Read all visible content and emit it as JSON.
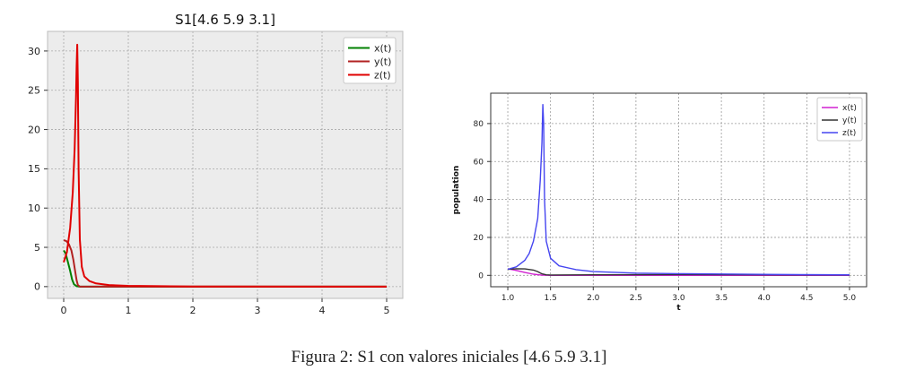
{
  "caption": "Figura 2: S1 con valores iniciales [4.6 5.9 3.1]",
  "chart_data": [
    {
      "type": "line",
      "title": "S1[4.6 5.9 3.1]",
      "xlabel": "",
      "ylabel": "",
      "xlim": [
        -0.25,
        5.25
      ],
      "ylim": [
        -1.5,
        32.5
      ],
      "xticks": [
        0,
        1,
        2,
        3,
        4,
        5
      ],
      "yticks": [
        0,
        5,
        10,
        15,
        20,
        25,
        30
      ],
      "grid": true,
      "legend": "top-right",
      "style": {
        "background": "#ececec",
        "grid_color": "#a8a8a8",
        "grid_dash": true
      },
      "series": [
        {
          "name": "x(t)",
          "color": "#008000",
          "x": [
            0,
            0.03,
            0.06,
            0.1,
            0.13,
            0.16,
            0.2,
            0.25,
            0.3,
            5
          ],
          "y": [
            4.6,
            4.2,
            3.3,
            2.0,
            0.9,
            0.3,
            0.05,
            0.0,
            0.0,
            0.0
          ]
        },
        {
          "name": "y(t)",
          "color": "#b22222",
          "x": [
            0,
            0.04,
            0.08,
            0.12,
            0.15,
            0.18,
            0.2,
            0.22,
            0.25,
            0.3,
            5
          ],
          "y": [
            5.9,
            5.8,
            5.4,
            4.6,
            3.4,
            1.8,
            0.8,
            0.2,
            0.0,
            0.0,
            0.0
          ]
        },
        {
          "name": "z(t)",
          "color": "#e00000",
          "x": [
            0,
            0.05,
            0.1,
            0.14,
            0.17,
            0.19,
            0.2,
            0.21,
            0.22,
            0.23,
            0.25,
            0.28,
            0.32,
            0.4,
            0.5,
            0.7,
            1.0,
            1.5,
            2.0,
            5
          ],
          "y": [
            3.1,
            4.4,
            7.5,
            12.0,
            17.5,
            24.0,
            28.0,
            30.8,
            26.0,
            15.0,
            6.0,
            2.5,
            1.3,
            0.7,
            0.4,
            0.2,
            0.1,
            0.05,
            0.02,
            0.0
          ]
        }
      ]
    },
    {
      "type": "line",
      "title": "",
      "xlabel": "t",
      "ylabel": "population",
      "xlim": [
        0.8,
        5.2
      ],
      "ylim": [
        -6,
        96
      ],
      "xticks": [
        1.0,
        1.5,
        2.0,
        2.5,
        3.0,
        3.5,
        4.0,
        4.5,
        5.0
      ],
      "xtick_labels": [
        "1.0",
        "1.5",
        "2.0",
        "2.5",
        "3.0",
        "3.5",
        "4.0",
        "4.5",
        "5.0"
      ],
      "yticks": [
        0,
        20,
        40,
        60,
        80
      ],
      "grid": true,
      "legend": "top-right",
      "style": {
        "background": "#ffffff",
        "grid_color": "#9a9a9a",
        "grid_dash": true
      },
      "series": [
        {
          "name": "x(t)",
          "color": "#d020d0",
          "x": [
            1.0,
            1.1,
            1.2,
            1.3,
            1.4,
            1.5,
            5.0
          ],
          "y": [
            3.5,
            2.6,
            1.5,
            0.6,
            0.1,
            0.0,
            0.0
          ]
        },
        {
          "name": "y(t)",
          "color": "#333333",
          "x": [
            1.0,
            1.1,
            1.2,
            1.3,
            1.35,
            1.4,
            1.45,
            1.5,
            2.0,
            3.0,
            4.0,
            5.0
          ],
          "y": [
            3.2,
            3.5,
            3.4,
            2.8,
            2.0,
            0.8,
            0.3,
            0.2,
            0.3,
            0.4,
            0.3,
            0.2
          ]
        },
        {
          "name": "z(t)",
          "color": "#4545f0",
          "x": [
            1.0,
            1.1,
            1.2,
            1.25,
            1.3,
            1.35,
            1.38,
            1.4,
            1.41,
            1.42,
            1.43,
            1.45,
            1.5,
            1.6,
            1.8,
            2.0,
            2.5,
            3.0,
            4.0,
            5.0
          ],
          "y": [
            3.2,
            4.5,
            8.0,
            11.5,
            18.0,
            30.0,
            50.0,
            70.0,
            90.0,
            80.0,
            40.0,
            18.0,
            9.0,
            5.0,
            3.0,
            2.0,
            1.2,
            0.9,
            0.5,
            0.3
          ]
        }
      ]
    }
  ]
}
